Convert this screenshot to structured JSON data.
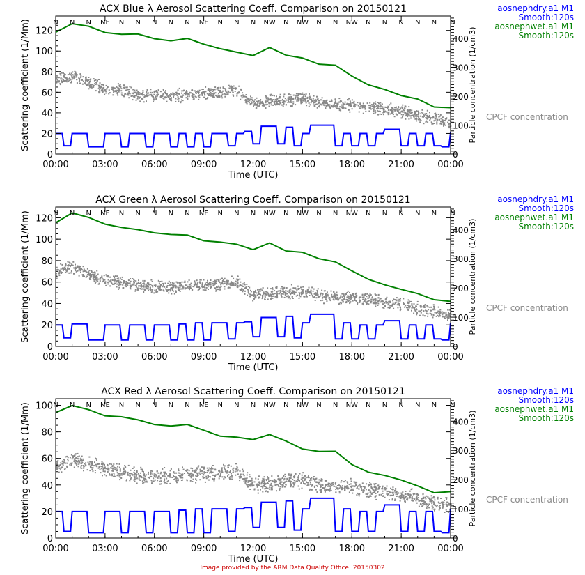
{
  "footer": "Image provided by the ARM Data Quality Office: 20150302",
  "colors": {
    "dry": "#0000ff",
    "wet": "#008000",
    "cpcf": "#888888"
  },
  "chart_data": [
    {
      "type": "line",
      "title": "ACX Blue λ Aerosol Scattering Coeff. Comparison on 20150121",
      "xlabel": "Time (UTC)",
      "ylabel": "Scattering coefficient (1/Mm)",
      "y2label": "Particle concentration (1/cm3)",
      "ylim": [
        0,
        134
      ],
      "yticks": [
        "0",
        "20",
        "40",
        "60",
        "80",
        "100",
        "120"
      ],
      "y2lim": [
        0,
        477
      ],
      "y2ticks": [
        "0",
        "100",
        "200",
        "300",
        "400"
      ],
      "xticks": [
        "00:00",
        "03:00",
        "06:00",
        "09:00",
        "12:00",
        "15:00",
        "18:00",
        "21:00",
        "00:00"
      ],
      "legend": [
        {
          "label": "aosnephdry.a1 M1",
          "sub": "Smooth:120s",
          "color": "#0000ff"
        },
        {
          "label": "aosnephwet.a1 M1",
          "sub": "Smooth:120s",
          "color": "#008000"
        }
      ],
      "cpcf_label": "CPCF concentration",
      "wind": [
        "N",
        "N",
        "N",
        "NE",
        "N",
        "N",
        "N",
        "N",
        "N",
        "NE",
        "N",
        "N",
        "N",
        "NW",
        "N",
        "NW",
        "N",
        "N",
        "NW",
        "N",
        "N",
        "N",
        "N",
        "N",
        "N"
      ],
      "x_hours_step": 1,
      "wet": [
        118,
        126,
        124,
        118,
        115,
        116,
        112,
        110,
        111,
        106,
        102,
        100,
        97,
        103,
        95,
        93,
        88,
        85,
        75,
        68,
        62,
        58,
        52,
        47,
        45
      ],
      "cpcf_mean": [
        72,
        76,
        70,
        64,
        62,
        58,
        57,
        57,
        58,
        60,
        61,
        62,
        50,
        52,
        53,
        54,
        50,
        48,
        48,
        46,
        44,
        42,
        38,
        35,
        32
      ],
      "dry_halfhour": [
        20,
        8,
        20,
        20,
        7,
        7,
        20,
        20,
        7,
        20,
        20,
        7,
        20,
        20,
        7,
        20,
        7,
        20,
        7,
        20,
        20,
        8,
        20,
        22,
        10,
        27,
        27,
        10,
        26,
        8,
        20,
        28,
        28,
        28,
        8,
        20,
        8,
        20,
        8,
        20,
        24,
        24,
        8,
        20,
        8,
        20,
        8,
        7,
        21
      ]
    },
    {
      "type": "line",
      "title": "ACX Green λ Aerosol Scattering Coeff. Comparison on 20150121",
      "xlabel": "Time (UTC)",
      "ylabel": "Scattering coefficient (1/Mm)",
      "y2label": "Particle concentration (1/cm3)",
      "ylim": [
        0,
        130
      ],
      "yticks": [
        "0",
        "20",
        "40",
        "60",
        "80",
        "100",
        "120"
      ],
      "y2lim": [
        0,
        477
      ],
      "y2ticks": [
        "0",
        "100",
        "200",
        "300",
        "400"
      ],
      "xticks": [
        "00:00",
        "03:00",
        "06:00",
        "09:00",
        "12:00",
        "15:00",
        "18:00",
        "21:00",
        "00:00"
      ],
      "legend": [
        {
          "label": "aosnephdry.a1 M1",
          "sub": "Smooth:120s",
          "color": "#0000ff"
        },
        {
          "label": "aosnephwet.a1 M1",
          "sub": "Smooth:120s",
          "color": "#008000"
        }
      ],
      "cpcf_label": "CPCF concentration",
      "wind": [
        "N",
        "N",
        "N",
        "NE",
        "N",
        "N",
        "N",
        "N",
        "N",
        "NE",
        "N",
        "N",
        "N",
        "NW",
        "N",
        "NW",
        "N",
        "N",
        "NW",
        "N",
        "N",
        "N",
        "N",
        "N",
        "N"
      ],
      "x_hours_step": 1,
      "wet": [
        115,
        123,
        120,
        114,
        111,
        110,
        106,
        104,
        105,
        100,
        96,
        94,
        91,
        96,
        89,
        87,
        83,
        80,
        70,
        64,
        58,
        54,
        48,
        44,
        42
      ],
      "cpcf_mean": [
        70,
        75,
        68,
        62,
        60,
        57,
        56,
        56,
        57,
        58,
        59,
        60,
        48,
        50,
        51,
        52,
        48,
        46,
        46,
        44,
        42,
        40,
        36,
        33,
        30
      ],
      "dry_halfhour": [
        20,
        8,
        21,
        21,
        6,
        6,
        20,
        20,
        6,
        20,
        20,
        6,
        20,
        20,
        6,
        21,
        6,
        22,
        6,
        22,
        22,
        7,
        22,
        23,
        9,
        27,
        27,
        9,
        28,
        8,
        22,
        30,
        30,
        30,
        7,
        22,
        7,
        20,
        7,
        20,
        24,
        24,
        7,
        20,
        7,
        20,
        7,
        6,
        22
      ]
    },
    {
      "type": "line",
      "title": "ACX Red λ Aerosol Scattering Coeff. Comparison on 20150121",
      "xlabel": "Time (UTC)",
      "ylabel": "Scattering coefficient (1/Mm)",
      "y2label": "Particle concentration (1/cm3)",
      "ylim": [
        0,
        105
      ],
      "yticks": [
        "0",
        "20",
        "40",
        "60",
        "80",
        "100"
      ],
      "y2lim": [
        0,
        477
      ],
      "y2ticks": [
        "0",
        "100",
        "200",
        "300",
        "400"
      ],
      "xticks": [
        "00:00",
        "03:00",
        "06:00",
        "09:00",
        "12:00",
        "15:00",
        "18:00",
        "21:00",
        "00:00"
      ],
      "legend": [
        {
          "label": "aosnephdry.a1 M1",
          "sub": "Smooth:120s",
          "color": "#0000ff"
        },
        {
          "label": "aosnephwet.a1 M1",
          "sub": "Smooth:120s",
          "color": "#008000"
        }
      ],
      "cpcf_label": "CPCF concentration",
      "wind": [
        "N",
        "N",
        "N",
        "NE",
        "N",
        "N",
        "N",
        "N",
        "N",
        "NE",
        "N",
        "N",
        "N",
        "NW",
        "N",
        "NW",
        "N",
        "N",
        "NW",
        "N",
        "N",
        "N",
        "N",
        "N",
        "N"
      ],
      "x_hours_step": 1,
      "wet": [
        95,
        100,
        98,
        93,
        90,
        90,
        86,
        85,
        86,
        82,
        78,
        76,
        74,
        78,
        72,
        68,
        66,
        64,
        55,
        50,
        46,
        44,
        38,
        35,
        35
      ],
      "cpcf_mean": [
        55,
        60,
        56,
        52,
        50,
        48,
        47,
        47,
        48,
        49,
        50,
        51,
        40,
        42,
        43,
        44,
        41,
        39,
        39,
        37,
        35,
        33,
        30,
        27,
        25
      ],
      "dry_halfhour": [
        20,
        5,
        20,
        20,
        4,
        4,
        20,
        20,
        4,
        20,
        20,
        4,
        20,
        20,
        4,
        21,
        4,
        22,
        4,
        22,
        22,
        5,
        22,
        23,
        8,
        27,
        27,
        8,
        28,
        6,
        22,
        30,
        30,
        30,
        5,
        22,
        5,
        20,
        5,
        20,
        25,
        25,
        5,
        20,
        5,
        20,
        5,
        4,
        22
      ]
    }
  ]
}
